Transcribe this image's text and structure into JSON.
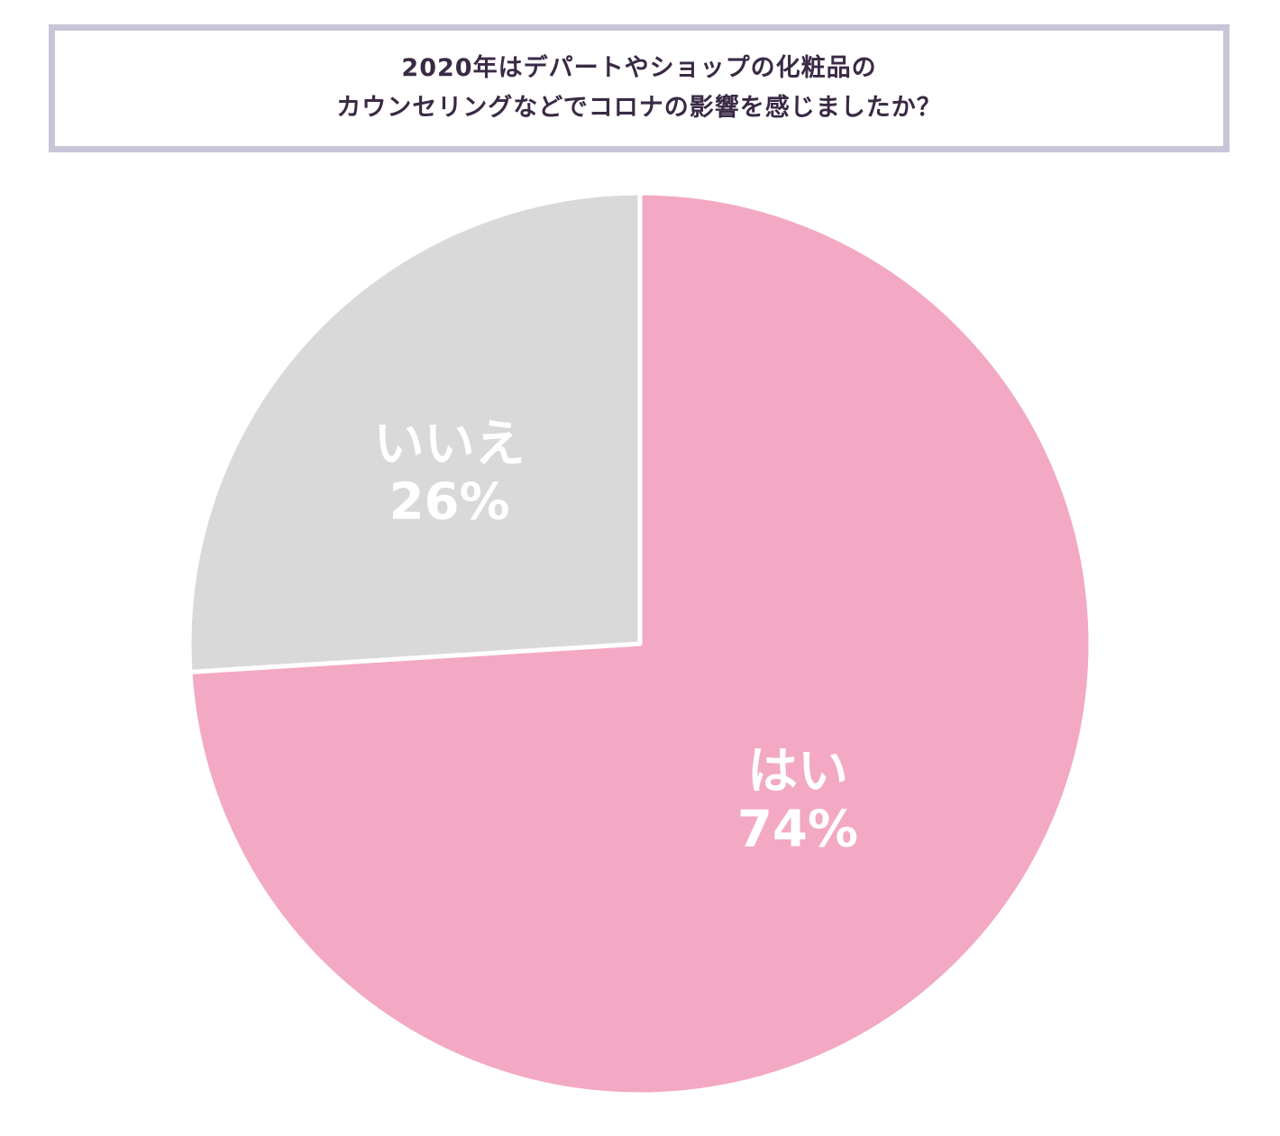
{
  "title": {
    "line1": "2020年はデパートやショップの化粧品の",
    "line2": "カウンセリングなどでコロナの影響を感じましたか？"
  },
  "chart_data": {
    "type": "pie",
    "slices": [
      {
        "label": "はい",
        "value": 74,
        "value_label": "74%",
        "color": "#f3a9c3"
      },
      {
        "label": "いいえ",
        "value": 26,
        "value_label": "26%",
        "color": "#d9d9d9"
      }
    ],
    "start": "12 o'clock",
    "direction": "clockwise",
    "legend": "none"
  }
}
